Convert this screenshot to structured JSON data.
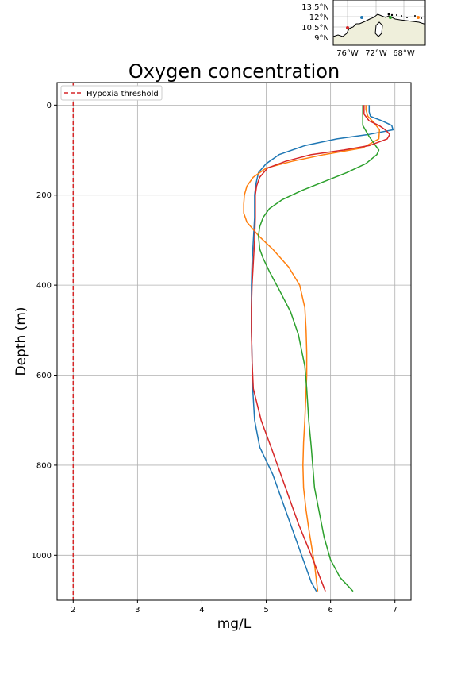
{
  "colors": {
    "series": [
      "#1f77b4",
      "#ff7f0e",
      "#2ca02c",
      "#d62728"
    ],
    "threshold": "#d62728",
    "grid": "#b0b0b0",
    "land": "#efefdb"
  },
  "chart_data": {
    "type": "line",
    "title": "Oxygen concentration",
    "xlabel": "mg/L",
    "ylabel": "Depth (m)",
    "xlim": [
      1.75,
      7.25
    ],
    "ylim": [
      1100,
      -50
    ],
    "y_inverted": true,
    "xticks": [
      2,
      3,
      4,
      5,
      6,
      7
    ],
    "yticks": [
      0,
      200,
      400,
      600,
      800,
      1000
    ],
    "grid": true,
    "legend": {
      "position": "top-left",
      "entries": [
        "Hypoxia threshold"
      ]
    },
    "threshold": {
      "name": "Hypoxia threshold",
      "x": 2,
      "style": "dashed"
    },
    "series": [
      {
        "x": [
          6.6,
          6.6,
          6.62,
          6.8,
          6.95,
          6.97,
          6.6,
          6.1,
          5.6,
          5.2,
          5.0,
          4.88,
          4.84,
          4.82,
          4.82,
          4.8,
          4.78,
          4.77,
          4.77,
          4.78,
          4.79,
          4.82,
          4.9,
          5.1,
          5.3,
          5.5,
          5.7,
          5.78
        ],
        "y": [
          0,
          15,
          25,
          35,
          45,
          55,
          65,
          75,
          90,
          110,
          130,
          150,
          175,
          200,
          250,
          300,
          350,
          400,
          500,
          560,
          630,
          700,
          760,
          820,
          900,
          980,
          1060,
          1080
        ]
      },
      {
        "x": [
          6.55,
          6.55,
          6.58,
          6.68,
          6.76,
          6.75,
          6.5,
          5.9,
          5.4,
          5.0,
          4.8,
          4.7,
          4.66,
          4.65,
          4.65,
          4.7,
          4.88,
          5.1,
          5.35,
          5.52,
          5.6,
          5.62,
          5.63,
          5.63,
          5.6,
          5.58,
          5.57,
          5.58,
          5.62,
          5.67,
          5.75,
          5.8
        ],
        "y": [
          0,
          10,
          25,
          40,
          55,
          75,
          95,
          110,
          125,
          140,
          160,
          180,
          200,
          220,
          240,
          260,
          290,
          320,
          360,
          400,
          450,
          500,
          550,
          600,
          700,
          750,
          800,
          850,
          900,
          950,
          1020,
          1080
        ]
      },
      {
        "x": [
          6.5,
          6.5,
          6.5,
          6.6,
          6.7,
          6.75,
          6.72,
          6.55,
          6.25,
          5.9,
          5.55,
          5.25,
          5.05,
          4.95,
          4.9,
          4.88,
          4.9,
          4.95,
          5.05,
          5.2,
          5.38,
          5.5,
          5.6,
          5.63,
          5.66,
          5.7,
          5.75,
          5.9,
          6.0,
          6.15,
          6.35
        ],
        "y": [
          0,
          20,
          45,
          70,
          90,
          100,
          110,
          130,
          150,
          170,
          190,
          210,
          230,
          250,
          270,
          290,
          320,
          340,
          370,
          410,
          460,
          510,
          580,
          630,
          700,
          760,
          850,
          960,
          1010,
          1050,
          1080
        ]
      },
      {
        "x": [
          6.52,
          6.52,
          6.6,
          6.75,
          6.85,
          6.92,
          6.88,
          6.6,
          6.2,
          5.7,
          5.3,
          5.02,
          4.9,
          4.85,
          4.83,
          4.83,
          4.82,
          4.8,
          4.78,
          4.77,
          4.77,
          4.78,
          4.8,
          4.92,
          5.1,
          5.3,
          5.5,
          5.7,
          5.92
        ],
        "y": [
          0,
          20,
          35,
          45,
          55,
          65,
          75,
          90,
          100,
          110,
          125,
          140,
          160,
          180,
          200,
          250,
          300,
          350,
          400,
          450,
          500,
          570,
          630,
          700,
          770,
          850,
          930,
          1000,
          1080
        ]
      }
    ]
  },
  "map": {
    "lat_labels": [
      "13.5°N",
      "12°N",
      "10.5°N",
      "9°N"
    ],
    "lon_labels": [
      "76°W",
      "72°W",
      "68°W"
    ]
  }
}
